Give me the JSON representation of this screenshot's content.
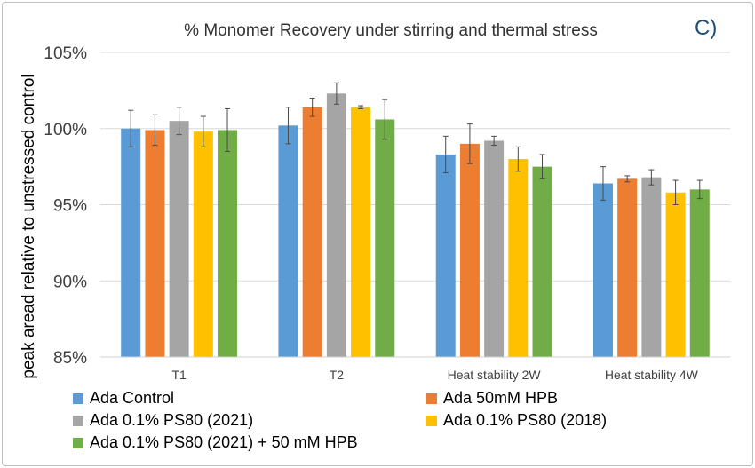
{
  "chart_data": {
    "type": "bar",
    "title": "% Monomer Recovery under stirring and thermal stress",
    "panel_label": "C)",
    "xlabel": "",
    "ylabel": "peak aread relative to unstressed control",
    "ylim": [
      85,
      105
    ],
    "yticks": [
      85,
      90,
      95,
      100,
      105
    ],
    "ytick_labels": [
      "85%",
      "90%",
      "95%",
      "100%",
      "105%"
    ],
    "grid": true,
    "legend_position": "bottom",
    "categories": [
      "T1",
      "T2",
      "Heat stability 2W",
      "Heat stability 4W"
    ],
    "series": [
      {
        "name": "Ada Control",
        "color": "#5b9bd5",
        "values": [
          100.0,
          100.2,
          98.3,
          96.4
        ],
        "errors": [
          1.2,
          1.2,
          1.2,
          1.1
        ]
      },
      {
        "name": "Ada 50mM HPB",
        "color": "#ed7d31",
        "values": [
          99.9,
          101.4,
          99.0,
          96.7
        ],
        "errors": [
          1.0,
          0.6,
          1.3,
          0.2
        ]
      },
      {
        "name": "Ada 0.1% PS80 (2021)",
        "color": "#a5a5a5",
        "values": [
          100.5,
          102.3,
          99.2,
          96.8
        ],
        "errors": [
          0.9,
          0.7,
          0.3,
          0.5
        ]
      },
      {
        "name": "Ada 0.1% PS80 (2018)",
        "color": "#ffc000",
        "values": [
          99.8,
          101.4,
          98.0,
          95.8
        ],
        "errors": [
          1.0,
          0.1,
          0.8,
          0.8
        ]
      },
      {
        "name": "Ada 0.1% PS80 (2021) + 50 mM HPB",
        "color": "#70ad47",
        "values": [
          99.9,
          100.6,
          97.5,
          96.0
        ],
        "errors": [
          1.4,
          1.3,
          0.8,
          0.6
        ]
      }
    ]
  }
}
